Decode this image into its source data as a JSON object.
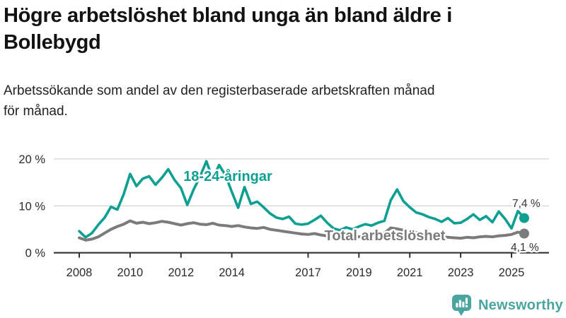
{
  "header": {
    "title": "Högre arbetslöshet bland unga än bland äldre i Bollebygd",
    "subtitle_line1": "Arbetssökande som andel av den registerbaserade arbetskraften månad",
    "subtitle_line2": "för månad."
  },
  "footer": {
    "brand": "Newsworthy",
    "brand_color": "#4aa5a0",
    "logo_icon": "speech-bubble-bar-chart-exclamation"
  },
  "chart_data": {
    "type": "line",
    "title": "Högre arbetslöshet bland unga än bland äldre i Bollebygd",
    "subtitle": "Arbetssökande som andel av den registerbaserade arbetskraften månad för månad.",
    "unit": "%",
    "grid": "horizontal",
    "legend": "inline-series-labels",
    "x_axis": {
      "start": 2008.0,
      "step_years": 0.25,
      "end": 2025.5,
      "tick_labels": [
        "2008",
        "2010",
        "2012",
        "2014",
        "2017",
        "2019",
        "2021",
        "2023",
        "2025"
      ]
    },
    "y_axis": {
      "ticks": [
        0,
        10,
        20
      ],
      "tick_labels": [
        "0 %",
        "10 %",
        "20 %"
      ],
      "range": [
        0,
        21
      ]
    },
    "series": [
      {
        "name": "18-24-åringar",
        "color": "#0da092",
        "end_value": 7.4,
        "end_label": "7,4 %",
        "values": [
          4.6,
          3.3,
          4.2,
          6.0,
          7.5,
          9.8,
          9.2,
          12.5,
          16.8,
          14.2,
          15.8,
          16.3,
          14.5,
          16.0,
          17.8,
          15.5,
          13.8,
          10.2,
          13.5,
          16.2,
          19.5,
          15.8,
          18.7,
          16.5,
          13.0,
          9.6,
          14.0,
          10.4,
          10.9,
          9.7,
          8.4,
          7.5,
          7.2,
          7.7,
          6.2,
          6.0,
          6.2,
          7.0,
          7.9,
          6.4,
          5.2,
          4.8,
          5.4,
          5.0,
          5.6,
          6.1,
          5.8,
          6.4,
          6.8,
          11.2,
          13.5,
          11.0,
          9.7,
          8.6,
          8.2,
          7.6,
          7.2,
          6.6,
          7.4,
          6.3,
          6.4,
          7.2,
          8.2,
          7.0,
          7.8,
          6.5,
          8.8,
          7.2,
          5.2,
          8.9,
          7.4
        ]
      },
      {
        "name": "Total arbetslöshet",
        "color": "#7b7b7b",
        "end_value": 4.1,
        "end_label": "4,1 %",
        "values": [
          3.2,
          2.7,
          2.9,
          3.4,
          4.2,
          5.0,
          5.6,
          6.1,
          6.8,
          6.3,
          6.5,
          6.2,
          6.4,
          6.7,
          6.5,
          6.2,
          5.9,
          6.2,
          6.4,
          6.1,
          6.0,
          6.3,
          5.9,
          5.8,
          5.6,
          5.8,
          5.5,
          5.3,
          5.2,
          5.4,
          5.0,
          4.8,
          4.6,
          4.4,
          4.2,
          4.0,
          3.9,
          4.1,
          3.8,
          3.6,
          3.5,
          3.3,
          3.4,
          3.2,
          3.4,
          3.6,
          3.5,
          3.8,
          4.2,
          5.3,
          5.1,
          4.8,
          4.6,
          4.3,
          4.0,
          3.8,
          3.6,
          3.4,
          3.3,
          3.2,
          3.1,
          3.3,
          3.2,
          3.4,
          3.5,
          3.4,
          3.6,
          3.7,
          3.9,
          4.4,
          4.1
        ]
      }
    ],
    "annotations": [
      {
        "id": "youth-series-label",
        "text": "18-24-åringar",
        "color": "#0da092"
      },
      {
        "id": "total-series-label",
        "text": "Total arbetslöshet",
        "color": "#7b7b7b"
      },
      {
        "id": "youth-end-value",
        "text": "7,4 %",
        "color": "#333333"
      },
      {
        "id": "total-end-value",
        "text": "4,1 %",
        "color": "#333333"
      }
    ],
    "colors": {
      "gridline": "#d9d9d9",
      "axis": "#333333",
      "tick_text": "#2b2b2b"
    }
  }
}
